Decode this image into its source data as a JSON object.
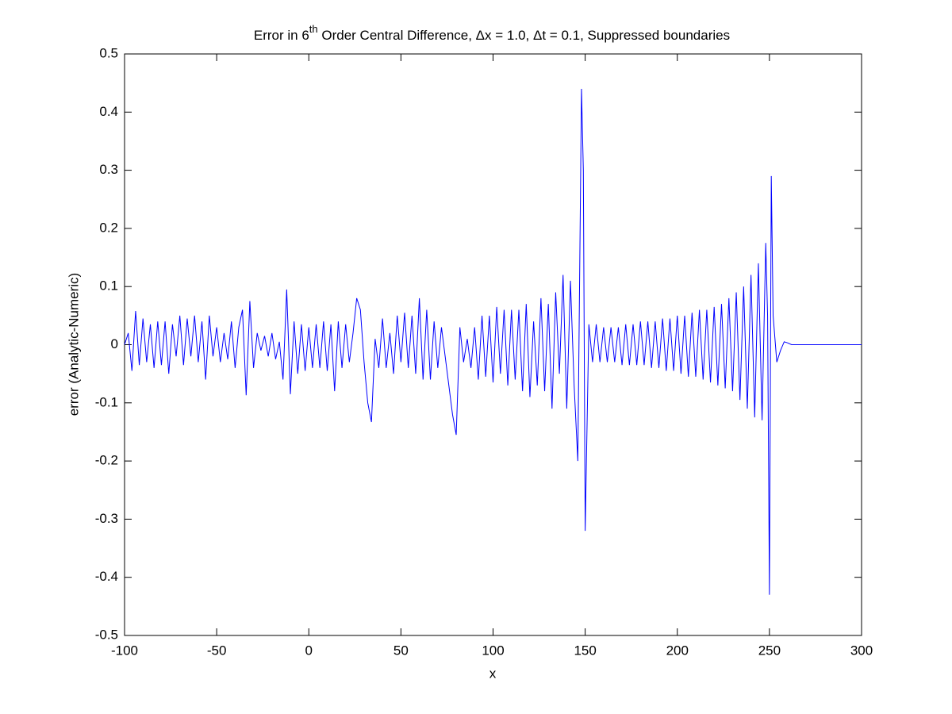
{
  "chart_data": {
    "type": "line",
    "title_parts": [
      "Error in 6",
      "th",
      " Order Central Difference, Δx = 1.0, Δt = 0.1, Suppressed boundaries"
    ],
    "x_label": "x",
    "y_label": "error (Analytic-Numeric)",
    "x": [
      -100,
      -98,
      -96,
      -94,
      -92,
      -90,
      -88,
      -86,
      -84,
      -82,
      -80,
      -78,
      -76,
      -74,
      -72,
      -70,
      -68,
      -66,
      -64,
      -62,
      -60,
      -58,
      -56,
      -54,
      -52,
      -50,
      -48,
      -46,
      -44,
      -42,
      -40,
      -38,
      -36,
      -34,
      -32,
      -30,
      -28,
      -26,
      -24,
      -22,
      -20,
      -18,
      -16,
      -14,
      -12,
      -10,
      -8,
      -6,
      -4,
      -2,
      0,
      2,
      4,
      6,
      8,
      10,
      12,
      14,
      16,
      18,
      20,
      22,
      24,
      26,
      28,
      30,
      32,
      34,
      36,
      38,
      40,
      42,
      44,
      46,
      48,
      50,
      52,
      54,
      56,
      58,
      60,
      62,
      64,
      66,
      68,
      70,
      72,
      74,
      76,
      78,
      80,
      82,
      84,
      86,
      88,
      90,
      92,
      94,
      96,
      98,
      100,
      102,
      104,
      106,
      108,
      110,
      112,
      114,
      116,
      118,
      120,
      122,
      124,
      126,
      128,
      130,
      132,
      134,
      136,
      138,
      140,
      142,
      144,
      146,
      148,
      149,
      150,
      152,
      154,
      156,
      158,
      160,
      162,
      164,
      166,
      168,
      170,
      172,
      174,
      176,
      178,
      180,
      182,
      184,
      186,
      188,
      190,
      192,
      194,
      196,
      198,
      200,
      202,
      204,
      206,
      208,
      210,
      212,
      214,
      216,
      218,
      220,
      222,
      224,
      226,
      228,
      230,
      232,
      234,
      236,
      238,
      240,
      242,
      244,
      246,
      248,
      249,
      250,
      251,
      252,
      254,
      256,
      258,
      260,
      262,
      300
    ],
    "series": [
      {
        "name": "error",
        "color": "#0000ff",
        "values": [
          0,
          0.02,
          -0.045,
          0.058,
          -0.035,
          0.045,
          -0.03,
          0.035,
          -0.04,
          0.04,
          -0.035,
          0.04,
          -0.05,
          0.035,
          -0.02,
          0.05,
          -0.035,
          0.045,
          -0.02,
          0.05,
          -0.03,
          0.04,
          -0.06,
          0.05,
          -0.02,
          0.03,
          -0.03,
          0.02,
          -0.025,
          0.04,
          -0.04,
          0.03,
          0.06,
          -0.087,
          0.075,
          -0.04,
          0.02,
          -0.01,
          0.015,
          -0.02,
          0.02,
          -0.025,
          0.005,
          -0.06,
          0.095,
          -0.085,
          0.04,
          -0.05,
          0.035,
          -0.045,
          0.03,
          -0.04,
          0.035,
          -0.04,
          0.04,
          -0.045,
          0.035,
          -0.08,
          0.04,
          -0.04,
          0.035,
          -0.03,
          0.02,
          0.08,
          0.06,
          -0.03,
          -0.1,
          -0.133,
          0.01,
          -0.04,
          0.045,
          -0.04,
          0.02,
          -0.05,
          0.05,
          -0.03,
          0.055,
          -0.04,
          0.05,
          -0.05,
          0.08,
          -0.06,
          0.06,
          -0.06,
          0.04,
          -0.04,
          0.03,
          -0.02,
          -0.07,
          -0.12,
          -0.155,
          0.03,
          -0.03,
          0.01,
          -0.04,
          0.03,
          -0.06,
          0.05,
          -0.055,
          0.05,
          -0.065,
          0.065,
          -0.05,
          0.06,
          -0.07,
          0.06,
          -0.06,
          0.06,
          -0.08,
          0.07,
          -0.09,
          0.04,
          -0.07,
          0.08,
          -0.08,
          0.07,
          -0.11,
          0.09,
          -0.05,
          0.12,
          -0.11,
          0.11,
          -0.07,
          -0.2,
          0.44,
          0.3,
          -0.32,
          0.035,
          -0.03,
          0.035,
          -0.03,
          0.03,
          -0.03,
          0.03,
          -0.03,
          0.03,
          -0.035,
          0.035,
          -0.035,
          0.035,
          -0.035,
          0.04,
          -0.035,
          0.04,
          -0.04,
          0.04,
          -0.04,
          0.045,
          -0.045,
          0.045,
          -0.045,
          0.05,
          -0.05,
          0.05,
          -0.055,
          0.055,
          -0.055,
          0.06,
          -0.06,
          0.06,
          -0.065,
          0.065,
          -0.07,
          0.07,
          -0.075,
          0.08,
          -0.08,
          0.09,
          -0.095,
          0.1,
          -0.11,
          0.12,
          -0.125,
          0.14,
          -0.13,
          0.175,
          0.05,
          -0.43,
          0.29,
          0.05,
          -0.03,
          -0.01,
          0.005,
          0.003,
          0,
          0
        ]
      }
    ],
    "xlim": [
      -100,
      300
    ],
    "xticks": [
      -100,
      -50,
      0,
      50,
      100,
      150,
      200,
      250,
      300
    ],
    "ylim": [
      -0.5,
      0.5
    ],
    "yticks": [
      -0.5,
      -0.4,
      -0.3,
      -0.2,
      -0.1,
      0,
      0.1,
      0.2,
      0.3,
      0.4,
      0.5
    ],
    "grid": false
  }
}
